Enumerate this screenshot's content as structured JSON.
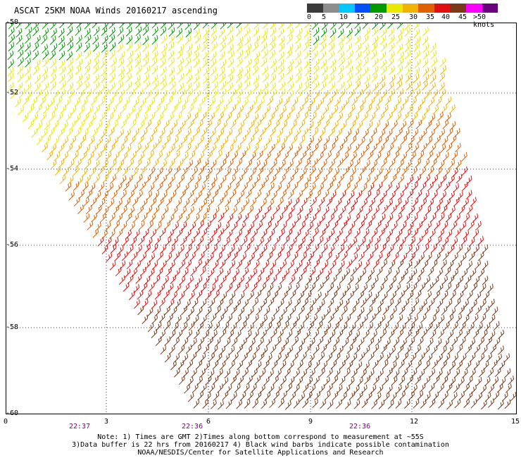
{
  "header": {
    "title": "ASCAT 25KM NOAA Winds 20160217 ascending"
  },
  "scale": {
    "labels": [
      "0",
      "5",
      "10",
      "15",
      "20",
      "25",
      "30",
      "35",
      "40",
      "45",
      ">50 knots"
    ],
    "colors": [
      "#3a3a3a",
      "#8c8c8c",
      "#00c8ff",
      "#0050ff",
      "#009900",
      "#e8e800",
      "#f0b400",
      "#e06000",
      "#e01010",
      "#7a3a1a",
      "#ff00ff",
      "#6a0080"
    ]
  },
  "axes": {
    "lon_ticks": [
      "0",
      "3",
      "6",
      "9",
      "12",
      "15"
    ],
    "lat_ticks": [
      "-50",
      "-52",
      "-54",
      "-56",
      "-58",
      "-60"
    ],
    "times": [
      "22:37",
      "22:36",
      "22:36"
    ]
  },
  "notes": {
    "line1": "Note: 1) Times are GMT 2)Times along bottom correspond to measurement at ~55S",
    "line2": "3)Data buffer is 22 hrs from 20160217 4) Black wind barbs indicate possible contamination",
    "line3": "NOAA/NESDIS/Center for Satellite Applications and Research"
  }
}
